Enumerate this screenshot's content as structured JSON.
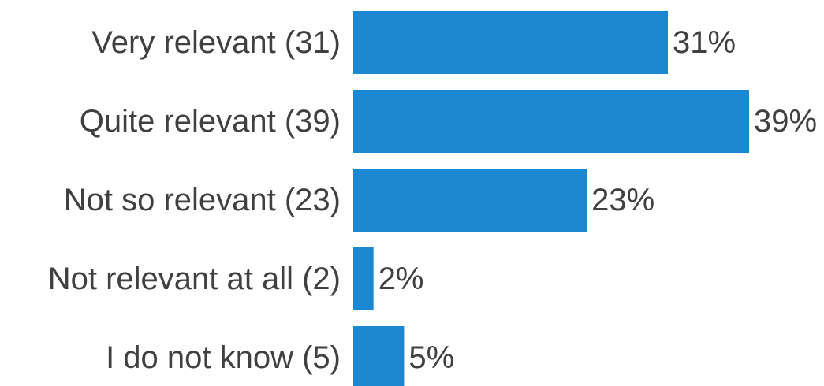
{
  "chart_data": {
    "type": "bar",
    "orientation": "horizontal",
    "categories": [
      "Very relevant (31)",
      "Quite relevant (39)",
      "Not so relevant (23)",
      "Not relevant at all (2)",
      "I do not know (5)"
    ],
    "values": [
      31,
      39,
      23,
      2,
      5
    ],
    "value_labels": [
      "31%",
      "39%",
      "23%",
      "2%",
      "5%"
    ],
    "unit": "%",
    "title": "",
    "xlabel": "",
    "ylabel": "",
    "xlim": [
      0,
      39
    ],
    "grid": false,
    "legend": "none",
    "bar_color": "#1a87d0",
    "text_color": "#404040"
  }
}
